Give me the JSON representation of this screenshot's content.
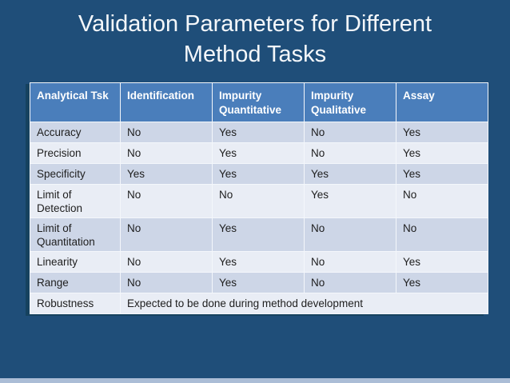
{
  "slide": {
    "title_line1": "Validation Parameters for Different",
    "title_line2": "Method Tasks"
  },
  "table": {
    "columns": [
      "Analytical Tsk",
      "Identification",
      "Impurity Quantitative",
      "Impurity Qualitative",
      "Assay"
    ],
    "rows": [
      {
        "label": "Accuracy",
        "values": [
          "No",
          "Yes",
          "No",
          "Yes"
        ]
      },
      {
        "label": "Precision",
        "values": [
          "No",
          "Yes",
          "No",
          "Yes"
        ]
      },
      {
        "label": "Specificity",
        "values": [
          "Yes",
          "Yes",
          "Yes",
          "Yes"
        ]
      },
      {
        "label": "Limit of Detection",
        "values": [
          "No",
          "No",
          "Yes",
          "No"
        ]
      },
      {
        "label": "Limit of Quantitation",
        "values": [
          "No",
          "Yes",
          "No",
          "No"
        ]
      },
      {
        "label": "Linearity",
        "values": [
          "No",
          "Yes",
          "No",
          "Yes"
        ]
      },
      {
        "label": "Range",
        "values": [
          "No",
          "Yes",
          "No",
          "Yes"
        ]
      },
      {
        "label": "Robustness",
        "merged_value": "Expected to be done during method development"
      }
    ]
  },
  "colors": {
    "slide_background": "#1F4E79",
    "header_fill": "#4A7EBB",
    "band_dark": "#CDD6E7",
    "band_light": "#E9EDF5",
    "grid_line": "#F4F7FB",
    "title_text": "#F4F7FA",
    "body_text": "#1E1E1E",
    "footer_strip": "#ABBDD6"
  }
}
